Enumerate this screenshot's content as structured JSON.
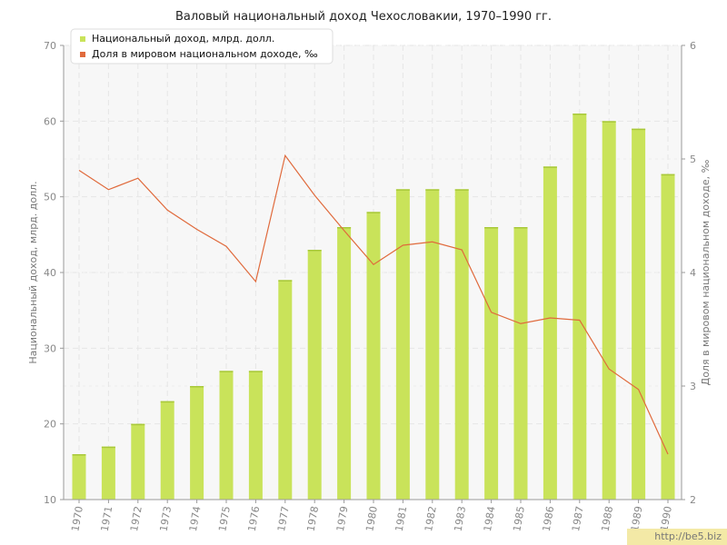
{
  "chart_data": {
    "type": "bar",
    "title": "Валовый национальный доход Чехословакии, 1970–1990 гг.",
    "categories": [
      "1970",
      "1971",
      "1972",
      "1973",
      "1974",
      "1975",
      "1976",
      "1977",
      "1978",
      "1979",
      "1980",
      "1981",
      "1982",
      "1983",
      "1984",
      "1985",
      "1986",
      "1987",
      "1988",
      "1989",
      "1990"
    ],
    "series": [
      {
        "name": "Национальный доход, млрд. долл.",
        "type": "bar",
        "axis": "left",
        "color": "#c9e35a",
        "values": [
          16,
          17,
          20,
          23,
          25,
          27,
          27,
          39,
          43,
          46,
          48,
          51,
          51,
          51,
          46,
          46,
          54,
          61,
          60,
          59,
          53
        ]
      },
      {
        "name": "Доля в мировом национальном доходе, ‰",
        "type": "line",
        "axis": "right",
        "color": "#e06a3c",
        "values": [
          4.9,
          4.73,
          4.83,
          4.55,
          4.38,
          4.23,
          3.92,
          5.03,
          4.68,
          4.37,
          4.07,
          4.24,
          4.27,
          4.2,
          3.65,
          3.55,
          3.6,
          3.58,
          3.15,
          2.97,
          2.4
        ]
      }
    ],
    "ylabel": "Национальный доход, млрд. долл.",
    "y2label": "Доля в мировом национальном доходе, ‰",
    "ylim": [
      10,
      70
    ],
    "y2lim": [
      2,
      6
    ],
    "yticks": [
      "10",
      "20",
      "30",
      "40",
      "50",
      "60",
      "70"
    ],
    "y2ticks": [
      "2",
      "3",
      "4",
      "5",
      "6"
    ],
    "grid": true,
    "legend_position": "top-left"
  },
  "watermark": "http://be5.biz"
}
